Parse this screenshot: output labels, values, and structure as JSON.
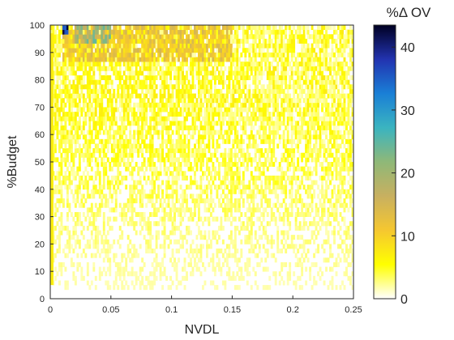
{
  "chart_data": {
    "type": "heatmap",
    "xlabel": "NVDL",
    "ylabel": "%Budget",
    "xlim": [
      0,
      0.25
    ],
    "ylim": [
      0,
      100
    ],
    "x_ticks": [
      0,
      0.05,
      0.1,
      0.15,
      0.2,
      0.25
    ],
    "x_tick_labels": [
      "0",
      "0.05",
      "0.1",
      "0.15",
      "0.2",
      "0.25"
    ],
    "y_ticks": [
      0,
      10,
      20,
      30,
      40,
      50,
      60,
      70,
      80,
      90,
      100
    ],
    "y_tick_labels": [
      "0",
      "10",
      "20",
      "30",
      "40",
      "50",
      "60",
      "70",
      "80",
      "90",
      "100"
    ],
    "colorbar": {
      "title": "%Δ OV",
      "range": [
        0,
        43.5
      ],
      "ticks": [
        0,
        10,
        20,
        30,
        40
      ],
      "tick_labels": [
        "0",
        "10",
        "20",
        "30",
        "40"
      ],
      "colormap": [
        "#ffffff",
        "#ffff00",
        "#f5c730",
        "#c8b060",
        "#8fb878",
        "#3bb4c0",
        "#1a7fd6",
        "#2233b0",
        "#000022"
      ]
    },
    "regions": [
      {
        "x_range": [
          0,
          0.25
        ],
        "y_range": [
          5,
          100
        ],
        "value_range": [
          0,
          8
        ],
        "description_value": "mostly low"
      },
      {
        "x_range": [
          0.01,
          0.15
        ],
        "y_range": [
          86,
          100
        ],
        "value_range": [
          8,
          15
        ],
        "description_value": "moderate"
      },
      {
        "x_range": [
          0.02,
          0.05
        ],
        "y_range": [
          93,
          100
        ],
        "value_range": [
          15,
          25
        ],
        "description_value": "higher"
      },
      {
        "x_range": [
          0.01,
          0.015
        ],
        "y_range": [
          96,
          100
        ],
        "value_range": [
          35,
          43
        ],
        "description_value": "peak"
      }
    ],
    "grid": false
  }
}
